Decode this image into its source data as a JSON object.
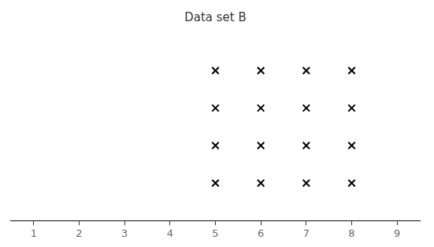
{
  "chart_data": {
    "type": "dot_plot",
    "title": "Data set B",
    "x": [
      5,
      6,
      7,
      8
    ],
    "values": [
      4,
      4,
      4,
      4
    ],
    "marker": "x",
    "color": "#000000",
    "xlim": [
      0.5,
      9.5
    ],
    "xticks": [
      1,
      2,
      3,
      4,
      5,
      6,
      7,
      8,
      9
    ],
    "grid": false,
    "tick_labels": "x"
  }
}
